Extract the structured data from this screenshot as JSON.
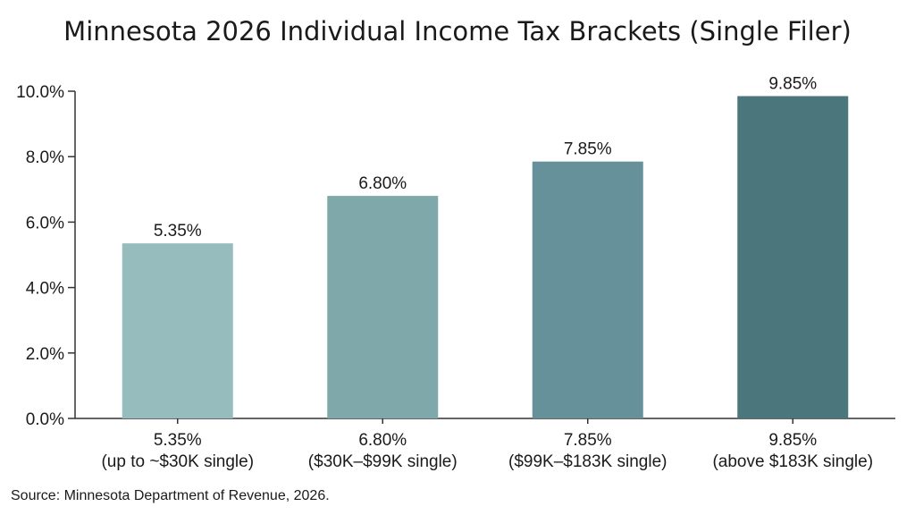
{
  "chart_data": {
    "type": "bar",
    "title": "Minnesota 2026 Individual Income Tax Brackets (Single Filer)",
    "categories": [
      [
        "5.35%",
        "(up to ~$30K single)"
      ],
      [
        "6.80%",
        "($30K–$99K single)"
      ],
      [
        "7.85%",
        "($99K–$183K single)"
      ],
      [
        "9.85%",
        "(above $183K single)"
      ]
    ],
    "values": [
      5.35,
      6.8,
      7.85,
      9.85
    ],
    "value_labels": [
      "5.35%",
      "6.80%",
      "7.85%",
      "9.85%"
    ],
    "bar_colors": [
      "#97bcbd",
      "#7fa8aa",
      "#66909a",
      "#4a767c"
    ],
    "yticks": [
      {
        "value": 0,
        "label": "0.0%"
      },
      {
        "value": 2,
        "label": "2.0%"
      },
      {
        "value": 4,
        "label": "4.0%"
      },
      {
        "value": 6,
        "label": "6.0%"
      },
      {
        "value": 8,
        "label": "8.0%"
      },
      {
        "value": 10,
        "label": "10.0%"
      }
    ],
    "ylim": [
      0,
      10
    ],
    "xlabel": "",
    "ylabel": "",
    "grid": false,
    "legend": "none"
  },
  "source": "Source: Minnesota Department of Revenue, 2026."
}
